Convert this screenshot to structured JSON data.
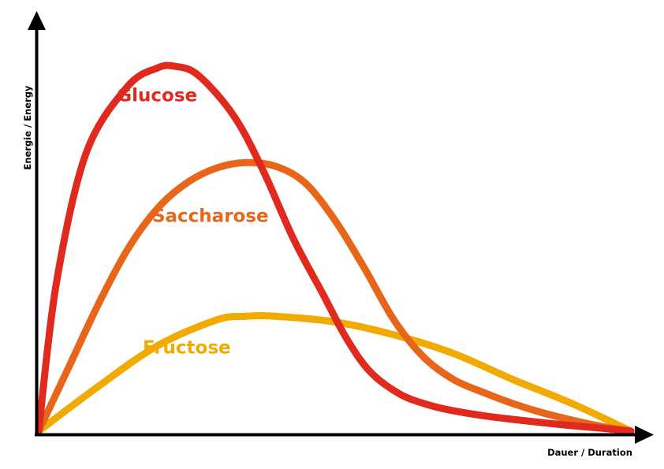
{
  "chart_data": {
    "type": "line",
    "title": "",
    "xlabel": "Dauer / Duration",
    "ylabel": "Energie / Energy",
    "xlim": [
      0,
      100
    ],
    "ylim": [
      0,
      100
    ],
    "grid": false,
    "legend": "inline labels",
    "series": [
      {
        "name": "Glucose",
        "color": "#E02A1E",
        "x": [
          0,
          3,
          8,
          15,
          20,
          23,
          27,
          33,
          38,
          43,
          48,
          52,
          56,
          61,
          66,
          70,
          75,
          80,
          85,
          90,
          95,
          100
        ],
        "y": [
          0,
          40,
          75,
          93,
          98,
          98.5,
          96,
          85,
          70,
          52,
          37,
          25,
          16,
          10,
          7,
          5.5,
          4.2,
          3.2,
          2.3,
          1.5,
          0.8,
          0
        ]
      },
      {
        "name": "Saccharose",
        "color": "#E8661A",
        "x": [
          0,
          5,
          10,
          15,
          20,
          25,
          30,
          35,
          40,
          45,
          50,
          55,
          60,
          65,
          70,
          75,
          80,
          85,
          90,
          95,
          100
        ],
        "y": [
          0,
          17,
          34,
          49,
          60,
          67,
          71,
          72.5,
          71.5,
          67,
          57,
          44,
          30,
          20,
          14,
          10.5,
          7.5,
          5,
          3,
          1.3,
          0
        ]
      },
      {
        "name": "Fructose",
        "color": "#F2A900",
        "x": [
          0,
          10,
          20,
          30,
          35,
          40,
          50,
          60,
          70,
          80,
          90,
          100
        ],
        "y": [
          0,
          12,
          23,
          30,
          31,
          31,
          29.5,
          26,
          21,
          14,
          7.5,
          0
        ]
      }
    ]
  }
}
